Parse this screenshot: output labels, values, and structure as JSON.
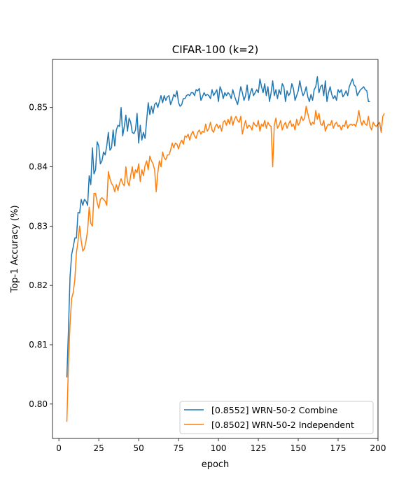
{
  "chart_data": {
    "type": "line",
    "title": "CIFAR-100 (k=2)",
    "xlabel": "epoch",
    "ylabel": "Top-1 Accuracy (%)",
    "xlim": [
      -4,
      200
    ],
    "ylim": [
      0.7942,
      0.8581
    ],
    "xticks": [
      0,
      25,
      50,
      75,
      100,
      125,
      150,
      175,
      200
    ],
    "yticks": [
      0.8,
      0.81,
      0.82,
      0.83,
      0.84,
      0.85
    ],
    "grid": false,
    "legend_position": "lower-right",
    "colors": {
      "combine": "#1f77b4",
      "independent": "#ff7f0e"
    },
    "x_start": 5,
    "series": [
      {
        "name": "[0.8552] WRN-50-2 Combine",
        "key": "combine",
        "values": [
          0.8045,
          0.8125,
          0.8215,
          0.8252,
          0.8265,
          0.828,
          0.828,
          0.8323,
          0.8322,
          0.8345,
          0.8335,
          0.8345,
          0.8342,
          0.8335,
          0.8385,
          0.837,
          0.8432,
          0.8388,
          0.8395,
          0.8442,
          0.8435,
          0.8405,
          0.841,
          0.8425,
          0.842,
          0.8435,
          0.8458,
          0.8428,
          0.8432,
          0.8462,
          0.8435,
          0.8462,
          0.847,
          0.8468,
          0.85,
          0.8452,
          0.8468,
          0.8487,
          0.846,
          0.8482,
          0.8475,
          0.8458,
          0.8456,
          0.8462,
          0.849,
          0.844,
          0.847,
          0.8445,
          0.8458,
          0.8448,
          0.8478,
          0.8508,
          0.8488,
          0.8502,
          0.849,
          0.8505,
          0.8508,
          0.85,
          0.851,
          0.852,
          0.8508,
          0.852,
          0.8512,
          0.8518,
          0.852,
          0.8505,
          0.8512,
          0.8522,
          0.8518,
          0.8528,
          0.8508,
          0.8502,
          0.8505,
          0.8515,
          0.8515,
          0.852,
          0.8522,
          0.852,
          0.8525,
          0.8525,
          0.852,
          0.853,
          0.8528,
          0.8532,
          0.8512,
          0.8518,
          0.8525,
          0.852,
          0.8522,
          0.852,
          0.8515,
          0.853,
          0.852,
          0.8525,
          0.853,
          0.851,
          0.8535,
          0.8528,
          0.8515,
          0.8525,
          0.852,
          0.8525,
          0.8522,
          0.8515,
          0.853,
          0.852,
          0.8512,
          0.8505,
          0.852,
          0.8535,
          0.8525,
          0.8512,
          0.852,
          0.8538,
          0.8512,
          0.8525,
          0.8532,
          0.852,
          0.8525,
          0.853,
          0.8525,
          0.8548,
          0.8535,
          0.8525,
          0.854,
          0.852,
          0.8535,
          0.851,
          0.8525,
          0.8545,
          0.852,
          0.853,
          0.8515,
          0.853,
          0.8522,
          0.854,
          0.8535,
          0.851,
          0.8528,
          0.852,
          0.8525,
          0.854,
          0.8532,
          0.8512,
          0.852,
          0.8528,
          0.8545,
          0.853,
          0.852,
          0.8525,
          0.8535,
          0.8518,
          0.851,
          0.8522,
          0.8512,
          0.853,
          0.8535,
          0.8552,
          0.8525,
          0.8535,
          0.8538,
          0.852,
          0.8545,
          0.851,
          0.8525,
          0.8535,
          0.8522,
          0.8515,
          0.852,
          0.8512,
          0.853,
          0.8525,
          0.853,
          0.8518,
          0.8522,
          0.8528,
          0.852,
          0.8535,
          0.8542,
          0.8548,
          0.8538,
          0.8535,
          0.852,
          0.8525,
          0.853,
          0.8532,
          0.8535,
          0.853,
          0.8528,
          0.851,
          0.851
        ]
      },
      {
        "name": "[0.8502] WRN-50-2 Independent",
        "key": "independent",
        "values": [
          0.797,
          0.8068,
          0.8135,
          0.8178,
          0.8188,
          0.821,
          0.8255,
          0.8275,
          0.83,
          0.8275,
          0.8258,
          0.8262,
          0.8275,
          0.8292,
          0.8332,
          0.8305,
          0.83,
          0.8355,
          0.8355,
          0.834,
          0.833,
          0.8345,
          0.8348,
          0.8345,
          0.8342,
          0.8335,
          0.8392,
          0.838,
          0.8372,
          0.8368,
          0.8358,
          0.837,
          0.836,
          0.8372,
          0.838,
          0.8372,
          0.8368,
          0.84,
          0.8375,
          0.8368,
          0.8385,
          0.84,
          0.838,
          0.8395,
          0.839,
          0.8405,
          0.8375,
          0.8395,
          0.8385,
          0.8402,
          0.841,
          0.8395,
          0.8418,
          0.841,
          0.8405,
          0.8395,
          0.8358,
          0.839,
          0.841,
          0.84,
          0.8425,
          0.8415,
          0.8412,
          0.842,
          0.842,
          0.8428,
          0.844,
          0.8432,
          0.844,
          0.8438,
          0.843,
          0.844,
          0.8445,
          0.8438,
          0.8452,
          0.845,
          0.8455,
          0.8445,
          0.8455,
          0.846,
          0.8452,
          0.8448,
          0.8458,
          0.8462,
          0.8455,
          0.846,
          0.8458,
          0.8472,
          0.846,
          0.8465,
          0.8475,
          0.8462,
          0.8458,
          0.8468,
          0.8472,
          0.8465,
          0.847,
          0.846,
          0.8475,
          0.8478,
          0.847,
          0.848,
          0.8472,
          0.8485,
          0.847,
          0.848,
          0.8485,
          0.8478,
          0.8475,
          0.8485,
          0.8455,
          0.8468,
          0.8478,
          0.8465,
          0.847,
          0.8468,
          0.8462,
          0.8475,
          0.847,
          0.8468,
          0.8478,
          0.846,
          0.8472,
          0.8468,
          0.8478,
          0.8465,
          0.8475,
          0.847,
          0.8468,
          0.84,
          0.847,
          0.8482,
          0.8465,
          0.847,
          0.8478,
          0.8462,
          0.847,
          0.8475,
          0.8465,
          0.8472,
          0.8478,
          0.8468,
          0.8472,
          0.8462,
          0.848,
          0.847,
          0.8475,
          0.8485,
          0.8478,
          0.8482,
          0.8502,
          0.849,
          0.8478,
          0.847,
          0.8475,
          0.8472,
          0.8495,
          0.848,
          0.849,
          0.8472,
          0.847,
          0.8478,
          0.846,
          0.8468,
          0.8472,
          0.847,
          0.8478,
          0.8465,
          0.8472,
          0.8475,
          0.8468,
          0.847,
          0.8462,
          0.847,
          0.8468,
          0.8478,
          0.8465,
          0.847,
          0.8472,
          0.847,
          0.8472,
          0.8468,
          0.8478,
          0.8495,
          0.8478,
          0.847,
          0.8478,
          0.8472,
          0.847,
          0.8485,
          0.8468,
          0.8462,
          0.8475,
          0.847,
          0.8468,
          0.8472,
          0.8475,
          0.8458,
          0.8485,
          0.849
        ]
      }
    ]
  }
}
